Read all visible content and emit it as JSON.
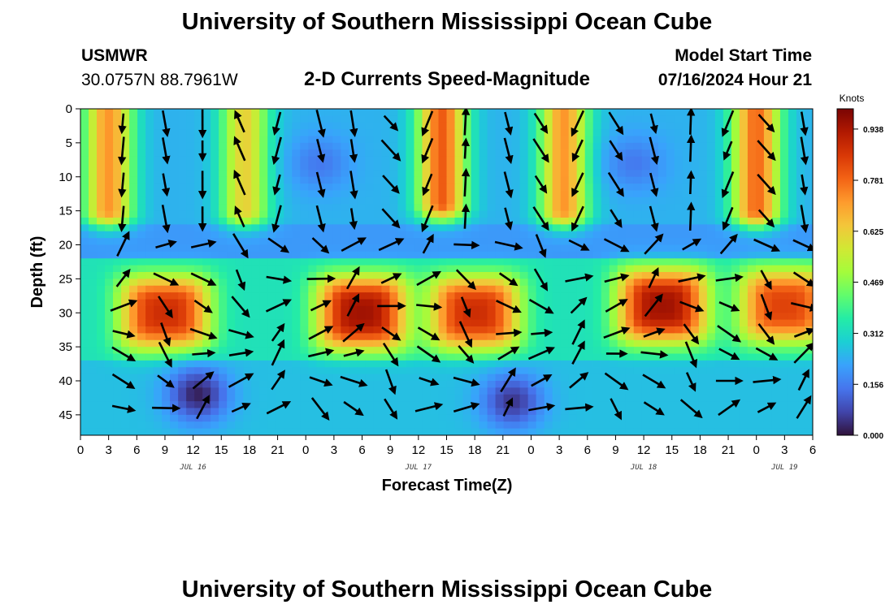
{
  "page": {
    "title": "University of Southern Mississippi Ocean Cube",
    "station_name": "USMWR",
    "station_coords": "30.0757N  88.7961W",
    "product_title": "2-D Currents Speed-Magnitude",
    "model_start_label": "Model Start Time",
    "model_start_value": "07/16/2024 Hour 21",
    "footer_title": "University of Southern Mississippi Ocean Cube"
  },
  "chart_data": {
    "type": "heatmap",
    "title": "2-D Currents Speed-Magnitude",
    "xlabel": "Forecast Time(Z)",
    "ylabel": "Depth (ft)",
    "x_tick_labels": [
      "0",
      "3",
      "6",
      "9",
      "12",
      "15",
      "18",
      "21",
      "0",
      "3",
      "6",
      "9",
      "12",
      "15",
      "18",
      "21",
      "0",
      "3",
      "6",
      "9",
      "12",
      "15",
      "18",
      "21",
      "0",
      "3",
      "6"
    ],
    "day_labels": [
      {
        "label": "JUL 16",
        "hour": 12
      },
      {
        "label": "JUL 17",
        "hour": 36
      },
      {
        "label": "JUL 18",
        "hour": 60
      },
      {
        "label": "JUL 19",
        "hour": 75
      }
    ],
    "xlim_hours": [
      0,
      78
    ],
    "y_ticks": [
      0,
      5,
      10,
      15,
      20,
      25,
      30,
      35,
      40,
      45
    ],
    "ylim_ft": [
      0,
      48
    ],
    "colorbar": {
      "title": "Knots",
      "ticks": [
        "0.938",
        "0.781",
        "0.625",
        "0.469",
        "0.312",
        "0.156",
        "0.000"
      ],
      "range": [
        0,
        1.0
      ],
      "colors": [
        "#30123b",
        "#4145ab",
        "#4675ed",
        "#39a2fc",
        "#1bcfd4",
        "#24eca6",
        "#61fc6c",
        "#a4fc3b",
        "#d1e834",
        "#f3c63a",
        "#fe9b2d",
        "#f36315",
        "#d93806",
        "#b11901",
        "#7a0403"
      ]
    },
    "speed_features": [
      {
        "type": "surface_jet",
        "center_hour": 3,
        "depth_top": 0,
        "depth_bottom": 15,
        "speed": 0.72
      },
      {
        "type": "surface_jet",
        "center_hour": 17.5,
        "depth_top": 0,
        "depth_bottom": 15,
        "speed": 0.62
      },
      {
        "type": "surface_jet",
        "center_hour": 38.5,
        "depth_top": 0,
        "depth_bottom": 14,
        "speed": 0.8
      },
      {
        "type": "surface_jet",
        "center_hour": 51.5,
        "depth_top": 0,
        "depth_bottom": 15,
        "speed": 0.72
      },
      {
        "type": "surface_jet",
        "center_hour": 72,
        "depth_top": 0,
        "depth_bottom": 15,
        "speed": 0.78
      },
      {
        "type": "subsurface_jet",
        "center_hour": 9,
        "center_depth": 30,
        "speed": 0.88
      },
      {
        "type": "subsurface_jet",
        "center_hour": 30,
        "center_depth": 30,
        "speed": 0.95
      },
      {
        "type": "subsurface_jet",
        "center_hour": 42,
        "center_depth": 30,
        "speed": 0.88
      },
      {
        "type": "subsurface_jet",
        "center_hour": 62,
        "center_depth": 29,
        "speed": 0.95
      },
      {
        "type": "subsurface_jet",
        "center_hour": 75,
        "center_depth": 29,
        "speed": 0.84
      },
      {
        "type": "calm_pocket",
        "center_hour": 12.5,
        "center_depth": 42,
        "speed": 0.02
      },
      {
        "type": "calm_pocket",
        "center_hour": 46,
        "center_depth": 43,
        "speed": 0.05
      },
      {
        "type": "calm_pocket",
        "center_hour": 25.5,
        "center_depth": 8,
        "speed": 0.15
      },
      {
        "type": "calm_pocket",
        "center_hour": 59,
        "center_depth": 8,
        "speed": 0.15
      }
    ],
    "vector_grid": {
      "hours": [
        4.5,
        9,
        13,
        17,
        21,
        25.5,
        29,
        33,
        37,
        41,
        45.5,
        49,
        53,
        57,
        61,
        65,
        69,
        73,
        77
      ],
      "depths_ft": [
        2,
        6,
        11,
        16,
        20,
        25,
        29,
        33,
        36,
        40,
        44
      ]
    }
  }
}
